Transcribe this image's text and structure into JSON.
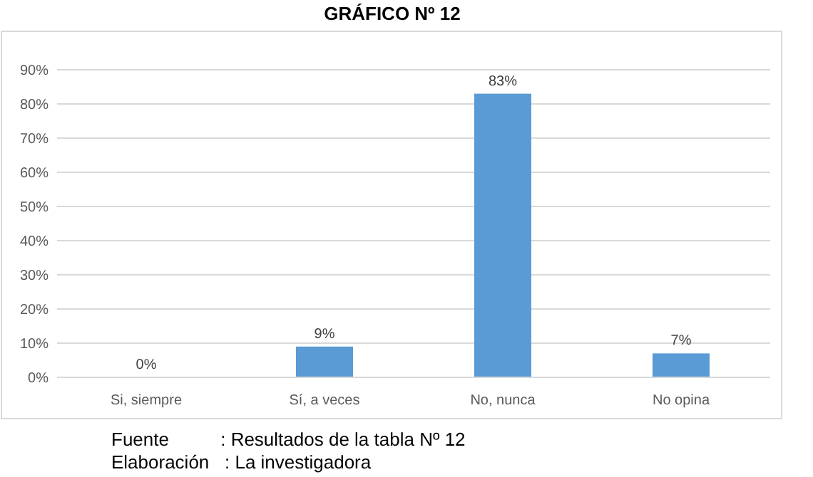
{
  "chart_data": {
    "type": "bar",
    "title": "GRÁFICO Nº 12",
    "categories": [
      "Si, siempre",
      "Sí, a veces",
      "No, nunca",
      "No opina"
    ],
    "values": [
      0,
      9,
      83,
      7
    ],
    "color": "#5b9bd5",
    "value_labels": [
      "0%",
      "9%",
      "83%",
      "7%"
    ],
    "ylim": [
      0,
      90
    ],
    "yticks": [
      {
        "value": 0,
        "label": "0%"
      },
      {
        "value": 10,
        "label": "10%"
      },
      {
        "value": 20,
        "label": "20%"
      },
      {
        "value": 30,
        "label": "30%"
      },
      {
        "value": 40,
        "label": "40%"
      },
      {
        "value": 50,
        "label": "50%"
      },
      {
        "value": 60,
        "label": "60%"
      },
      {
        "value": 70,
        "label": "70%"
      },
      {
        "value": 80,
        "label": "80%"
      },
      {
        "value": 90,
        "label": "90%"
      }
    ],
    "grid": "y",
    "annotations": [
      "Fuente          : Resultados de la tabla Nº 12",
      "Elaboración   : La investigadora"
    ]
  }
}
